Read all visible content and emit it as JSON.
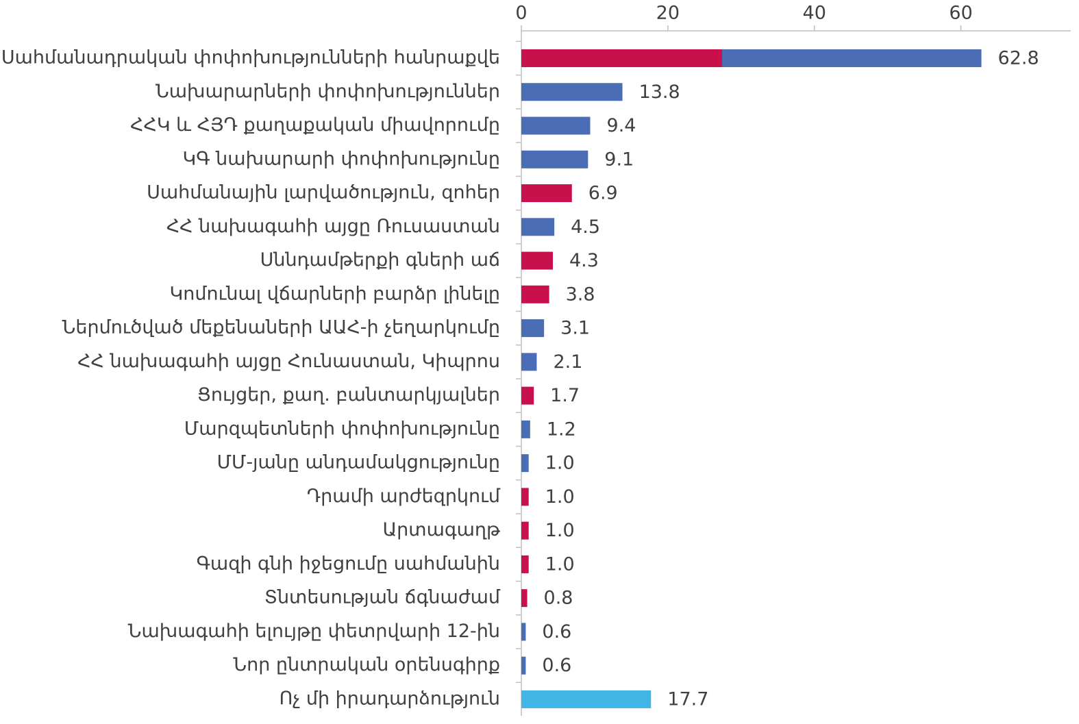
{
  "chart_data": {
    "type": "bar",
    "orientation": "horizontal",
    "categories": [
      "Սահմանադրական փոփոխությունների հանրաքվե",
      "Նախարարների փոփոխություններ",
      "ՀՀԿ և ՀՅԴ քաղաքական միավորումը",
      "ԿԳ նախարարի փոփոխությունը",
      "Սահմանային լարվածություն, զոհեր",
      "ՀՀ նախագահի այցը Ռուսաստան",
      "Սննդամթերքի գների աճ",
      "Կոմունալ վճարների բարձր լինելը",
      "Ներմուծված մեքենաների ԱԱՀ-ի չեղարկումը",
      "ՀՀ նախագահի այցը Հունաստան, Կիպրոս",
      "Ցույցեր, քաղ. բանտարկյալներ",
      "Մարզպետների փոփոխությունը",
      "ՄՄ-յանը անդամակցությունը",
      "Դրամի արժեզրկում",
      "Արտագաղթ",
      "Գազի գնի իջեցումը սահմանին",
      "Տնտեսության ճգնաժամ",
      "Նախագահի ելույթը փետրվարի 12-ին",
      "Նոր ընտրական օրենսգիրք",
      "Ոչ մի իրադարձություն"
    ],
    "series": [
      {
        "color": "#c8104c",
        "values": [
          27.4,
          null,
          null,
          null,
          6.9,
          null,
          4.3,
          3.8,
          null,
          null,
          1.7,
          null,
          null,
          1.0,
          1.0,
          1.0,
          0.8,
          null,
          null,
          null
        ]
      },
      {
        "color": "#4a6db5",
        "values": [
          35.4,
          13.8,
          9.4,
          9.1,
          null,
          4.5,
          null,
          null,
          3.1,
          2.1,
          null,
          1.2,
          1.0,
          null,
          null,
          null,
          null,
          0.6,
          0.6,
          null
        ]
      },
      {
        "color": "#41b6e6",
        "values": [
          null,
          null,
          null,
          null,
          null,
          null,
          null,
          null,
          null,
          null,
          null,
          null,
          null,
          null,
          null,
          null,
          null,
          null,
          null,
          17.7
        ]
      }
    ],
    "totals": [
      62.8,
      13.8,
      9.4,
      9.1,
      6.9,
      4.5,
      4.3,
      3.8,
      3.1,
      2.1,
      1.7,
      1.2,
      1.0,
      1.0,
      1.0,
      1.0,
      0.8,
      0.6,
      0.6,
      17.7
    ],
    "value_labels": [
      "62.8",
      "13.8",
      "9.4",
      "9.1",
      "6.9",
      "4.5",
      "4.3",
      "3.8",
      "3.1",
      "2.1",
      "1.7",
      "1.2",
      "1.0",
      "1.0",
      "1.0",
      "1.0",
      "0.8",
      "0.6",
      "0.6",
      "17.7"
    ],
    "xlim": [
      0,
      75
    ],
    "xticks": [
      0,
      20,
      40,
      60
    ]
  }
}
